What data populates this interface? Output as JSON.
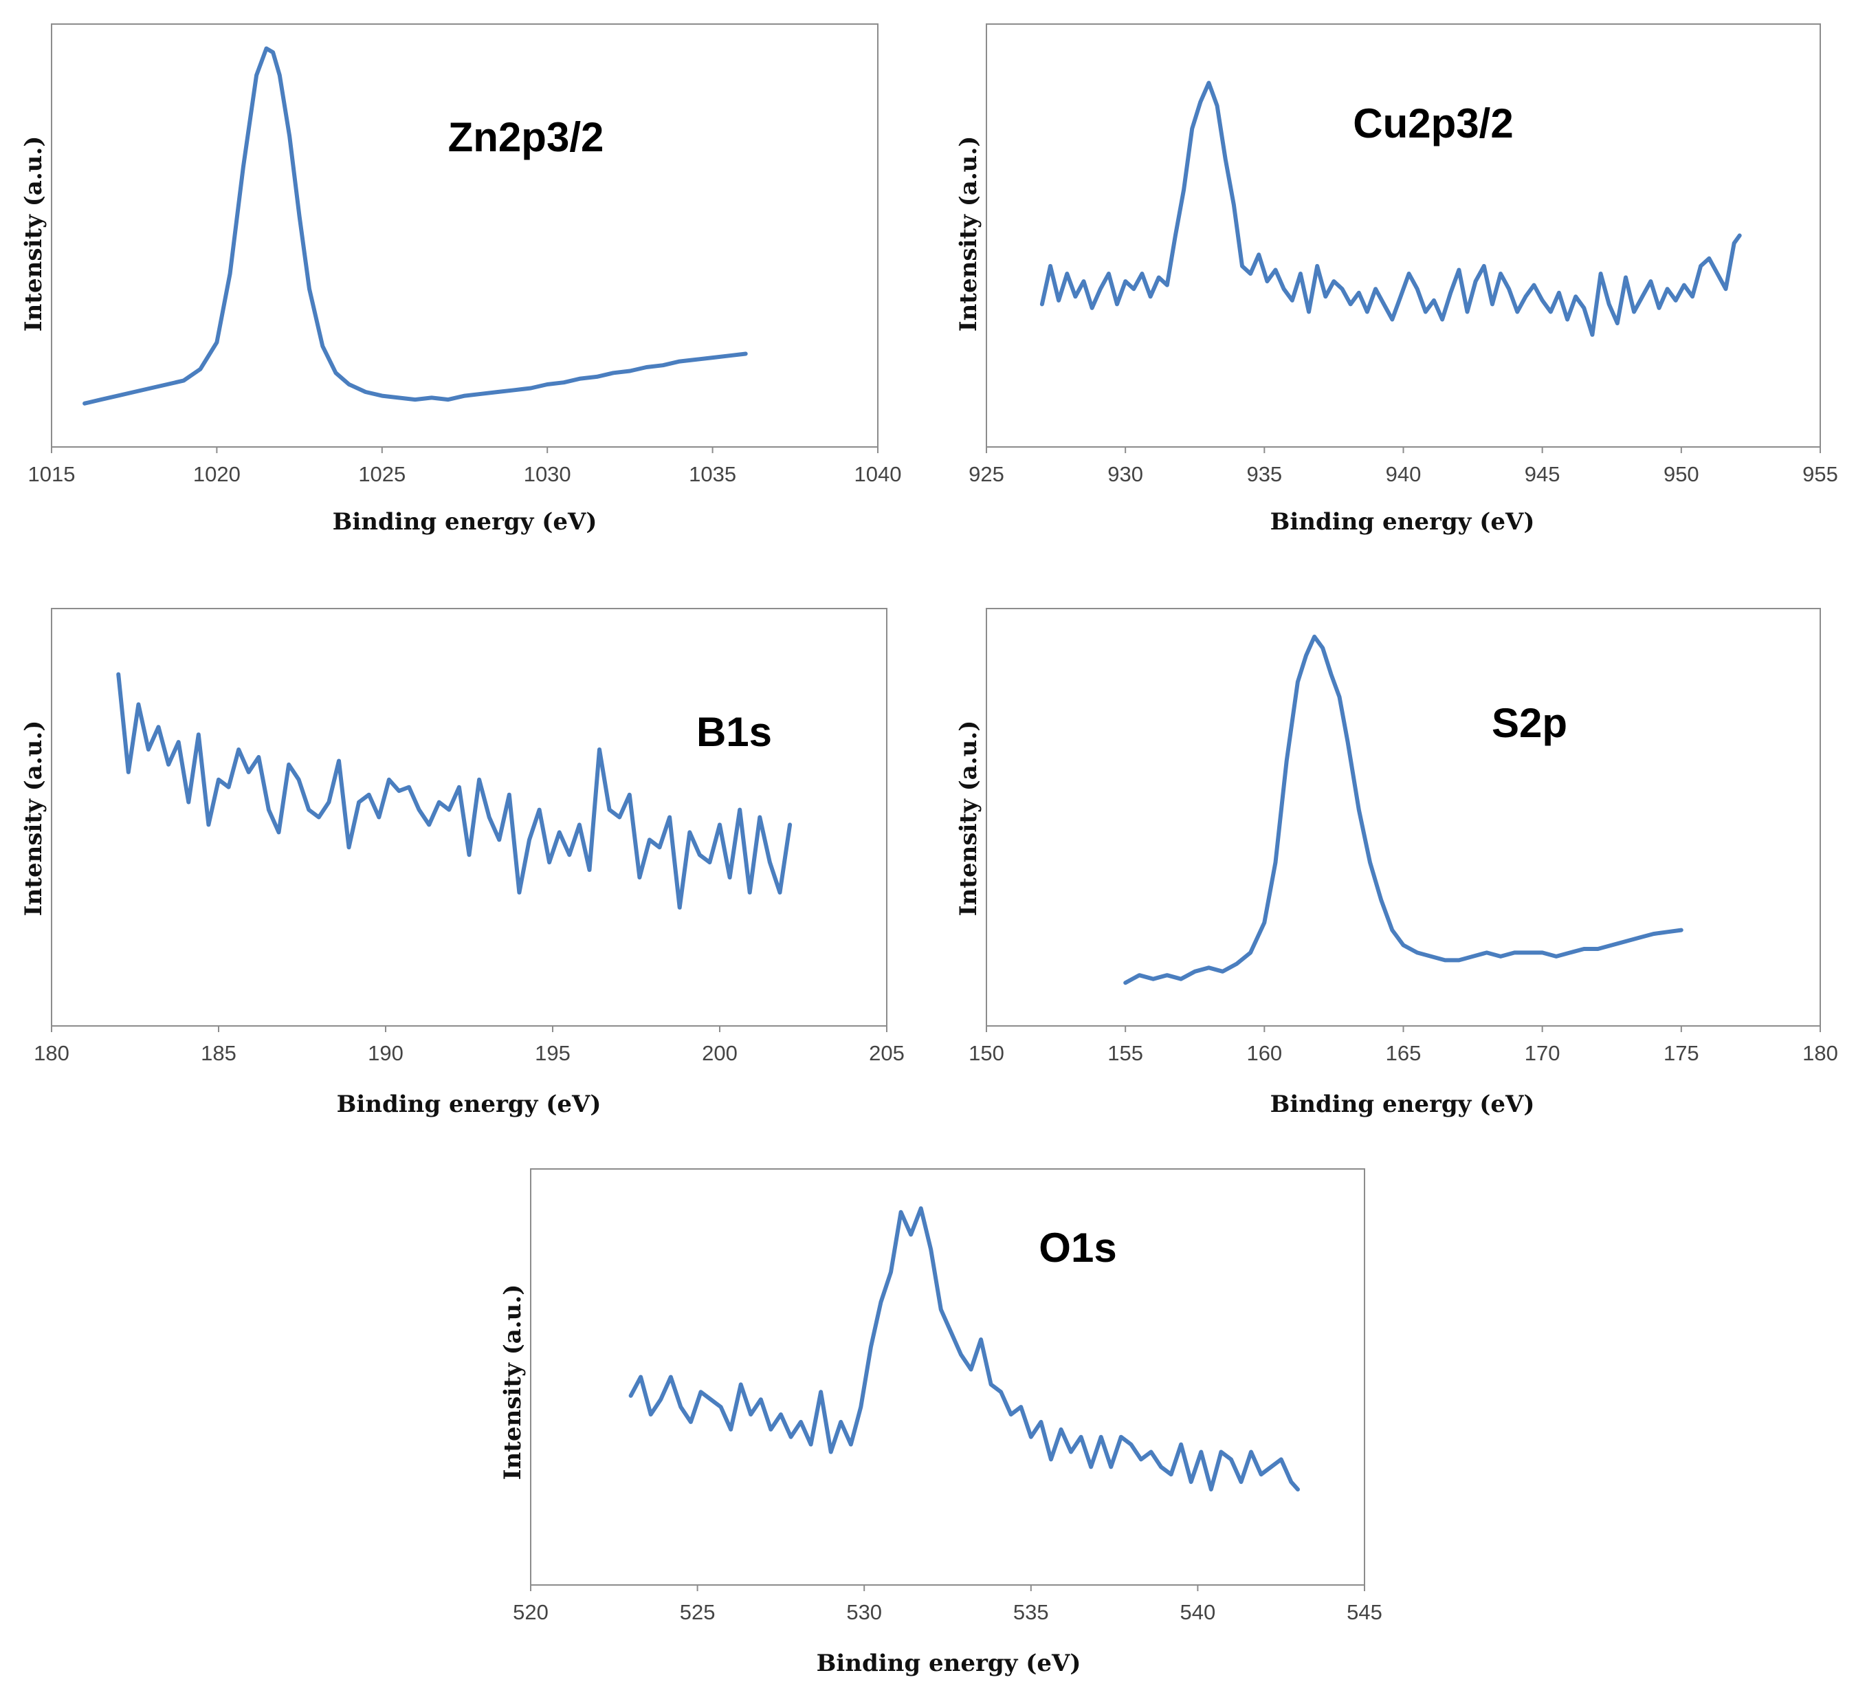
{
  "colors": {
    "series": "#4a7ebf",
    "frame": "#8c8c8c"
  },
  "chart_data": [
    {
      "type": "line",
      "title": "Zn2p3/2",
      "xlabel": "Binding energy (eV)",
      "ylabel": "Intensity (a.u.)",
      "xlim": [
        1015,
        1040
      ],
      "xticks": [
        "1015",
        "1020",
        "1025",
        "1030",
        "1035",
        "1040"
      ],
      "ylim": [
        0,
        100
      ],
      "series": [
        {
          "name": "Zn2p3/2",
          "x": [
            1016,
            1016.5,
            1017,
            1017.5,
            1018,
            1018.5,
            1019,
            1019.5,
            1020,
            1020.4,
            1020.8,
            1021.2,
            1021.5,
            1021.7,
            1021.9,
            1022.2,
            1022.5,
            1022.8,
            1023.2,
            1023.6,
            1024,
            1024.5,
            1025,
            1025.5,
            1026,
            1026.5,
            1027,
            1027.5,
            1028,
            1028.5,
            1029,
            1029.5,
            1030,
            1030.5,
            1031,
            1031.5,
            1032,
            1032.5,
            1033,
            1033.5,
            1034,
            1034.5,
            1035,
            1035.5,
            1036
          ],
          "y": [
            6,
            7,
            8,
            9,
            10,
            11,
            12,
            15,
            22,
            40,
            68,
            92,
            99,
            98,
            92,
            76,
            55,
            36,
            21,
            14,
            11,
            9,
            8,
            7.5,
            7,
            7.5,
            7,
            8,
            8.5,
            9,
            9.5,
            10,
            11,
            11.5,
            12.5,
            13,
            14,
            14.5,
            15.5,
            16,
            17,
            17.5,
            18,
            18.5,
            19
          ]
        }
      ]
    },
    {
      "type": "line",
      "title": "Cu2p3/2",
      "xlabel": "Binding energy (eV)",
      "ylabel": "Intensity (a.u.)",
      "xlim": [
        925,
        955
      ],
      "xticks": [
        "925",
        "930",
        "935",
        "940",
        "945",
        "950",
        "955"
      ],
      "ylim": [
        0,
        100
      ],
      "series": [
        {
          "name": "Cu2p3/2",
          "x": [
            927,
            927.3,
            927.6,
            927.9,
            928.2,
            928.5,
            928.8,
            929.1,
            929.4,
            929.7,
            930,
            930.3,
            930.6,
            930.9,
            931.2,
            931.5,
            931.8,
            932.1,
            932.4,
            932.7,
            933,
            933.3,
            933.6,
            933.9,
            934.2,
            934.5,
            934.8,
            935.1,
            935.4,
            935.7,
            936,
            936.3,
            936.6,
            936.9,
            937.2,
            937.5,
            937.8,
            938.1,
            938.4,
            938.7,
            939,
            939.3,
            939.6,
            939.9,
            940.2,
            940.5,
            940.8,
            941.1,
            941.4,
            941.7,
            942,
            942.3,
            942.6,
            942.9,
            943.2,
            943.5,
            943.8,
            944.1,
            944.4,
            944.7,
            945,
            945.3,
            945.6,
            945.9,
            946.2,
            946.5,
            946.8,
            947.1,
            947.4,
            947.7,
            948,
            948.3,
            948.6,
            948.9,
            949.2,
            949.5,
            949.8,
            950.1,
            950.4,
            950.7,
            951,
            951.3,
            951.6,
            951.9,
            952.1
          ],
          "y": [
            32,
            42,
            33,
            40,
            34,
            38,
            31,
            36,
            40,
            32,
            38,
            36,
            40,
            34,
            39,
            37,
            50,
            62,
            78,
            85,
            90,
            84,
            70,
            58,
            42,
            40,
            45,
            38,
            41,
            36,
            33,
            40,
            30,
            42,
            34,
            38,
            36,
            32,
            35,
            30,
            36,
            32,
            28,
            34,
            40,
            36,
            30,
            33,
            28,
            35,
            41,
            30,
            38,
            42,
            32,
            40,
            36,
            30,
            34,
            37,
            33,
            30,
            35,
            28,
            34,
            31,
            24,
            40,
            32,
            27,
            39,
            30,
            34,
            38,
            31,
            36,
            33,
            37,
            34,
            42,
            44,
            40,
            36,
            48,
            50
          ]
        }
      ]
    },
    {
      "type": "line",
      "title": "B1s",
      "xlabel": "Binding energy (eV)",
      "ylabel": "Intensity (a.u.)",
      "xlim": [
        180,
        205
      ],
      "xticks": [
        "180",
        "185",
        "190",
        "195",
        "200",
        "205"
      ],
      "ylim": [
        0,
        100
      ],
      "series": [
        {
          "name": "B1s",
          "x": [
            182,
            182.3,
            182.6,
            182.9,
            183.2,
            183.5,
            183.8,
            184.1,
            184.4,
            184.7,
            185,
            185.3,
            185.6,
            185.9,
            186.2,
            186.5,
            186.8,
            187.1,
            187.4,
            187.7,
            188,
            188.3,
            188.6,
            188.9,
            189.2,
            189.5,
            189.8,
            190.1,
            190.4,
            190.7,
            191,
            191.3,
            191.6,
            191.9,
            192.2,
            192.5,
            192.8,
            193.1,
            193.4,
            193.7,
            194,
            194.3,
            194.6,
            194.9,
            195.2,
            195.5,
            195.8,
            196.1,
            196.4,
            196.7,
            197,
            197.3,
            197.6,
            197.9,
            198.2,
            198.5,
            198.8,
            199.1,
            199.4,
            199.7,
            200,
            200.3,
            200.6,
            200.9,
            201.2,
            201.5,
            201.8,
            202.1
          ],
          "y": [
            88,
            62,
            80,
            68,
            74,
            64,
            70,
            54,
            72,
            48,
            60,
            58,
            68,
            62,
            66,
            52,
            46,
            64,
            60,
            52,
            50,
            54,
            65,
            42,
            54,
            56,
            50,
            60,
            57,
            58,
            52,
            48,
            54,
            52,
            58,
            40,
            60,
            50,
            44,
            56,
            30,
            44,
            52,
            38,
            46,
            40,
            48,
            36,
            68,
            52,
            50,
            56,
            34,
            44,
            42,
            50,
            26,
            46,
            40,
            38,
            48,
            34,
            52,
            30,
            50,
            38,
            30,
            48
          ]
        }
      ]
    },
    {
      "type": "line",
      "title": "S2p",
      "xlabel": "Binding energy (eV)",
      "ylabel": "Intensity (a.u.)",
      "xlim": [
        150,
        180
      ],
      "xticks": [
        "150",
        "155",
        "160",
        "165",
        "170",
        "175",
        "180"
      ],
      "ylim": [
        0,
        100
      ],
      "series": [
        {
          "name": "S2p",
          "x": [
            155,
            155.5,
            156,
            156.5,
            157,
            157.5,
            158,
            158.5,
            159,
            159.5,
            160,
            160.4,
            160.8,
            161.2,
            161.5,
            161.8,
            162.1,
            162.4,
            162.7,
            163,
            163.4,
            163.8,
            164.2,
            164.6,
            165,
            165.5,
            166,
            166.5,
            167,
            167.5,
            168,
            168.5,
            169,
            169.5,
            170,
            170.5,
            171,
            171.5,
            172,
            172.5,
            173,
            173.5,
            174,
            174.5,
            175
          ],
          "y": [
            6,
            8,
            7,
            8,
            7,
            9,
            10,
            9,
            11,
            14,
            22,
            38,
            65,
            86,
            93,
            98,
            95,
            88,
            82,
            70,
            52,
            38,
            28,
            20,
            16,
            14,
            13,
            12,
            12,
            13,
            14,
            13,
            14,
            14,
            14,
            13,
            14,
            15,
            15,
            16,
            17,
            18,
            19,
            19.5,
            20
          ]
        }
      ]
    },
    {
      "type": "line",
      "title": "O1s",
      "xlabel": "Binding energy (eV)",
      "ylabel": "Intensity (a.u.)",
      "xlim": [
        520,
        545
      ],
      "xticks": [
        "520",
        "525",
        "530",
        "535",
        "540",
        "545"
      ],
      "ylim": [
        0,
        100
      ],
      "series": [
        {
          "name": "O1s",
          "x": [
            523,
            523.3,
            523.6,
            523.9,
            524.2,
            524.5,
            524.8,
            525.1,
            525.4,
            525.7,
            526,
            526.3,
            526.6,
            526.9,
            527.2,
            527.5,
            527.8,
            528.1,
            528.4,
            528.7,
            529,
            529.3,
            529.6,
            529.9,
            530.2,
            530.5,
            530.8,
            531.1,
            531.4,
            531.7,
            532,
            532.3,
            532.6,
            532.9,
            533.2,
            533.5,
            533.8,
            534.1,
            534.4,
            534.7,
            535,
            535.3,
            535.6,
            535.9,
            536.2,
            536.5,
            536.8,
            537.1,
            537.4,
            537.7,
            538,
            538.3,
            538.6,
            538.9,
            539.2,
            539.5,
            539.8,
            540.1,
            540.4,
            540.7,
            541,
            541.3,
            541.6,
            541.9,
            542.2,
            542.5,
            542.8,
            543
          ],
          "y": [
            45,
            50,
            40,
            44,
            50,
            42,
            38,
            46,
            44,
            42,
            36,
            48,
            40,
            44,
            36,
            40,
            34,
            38,
            32,
            46,
            30,
            38,
            32,
            42,
            58,
            70,
            78,
            94,
            88,
            95,
            84,
            68,
            62,
            56,
            52,
            60,
            48,
            46,
            40,
            42,
            34,
            38,
            28,
            36,
            30,
            34,
            26,
            34,
            26,
            34,
            32,
            28,
            30,
            26,
            24,
            32,
            22,
            30,
            20,
            30,
            28,
            22,
            30,
            24,
            26,
            28,
            22,
            20
          ]
        }
      ]
    }
  ]
}
